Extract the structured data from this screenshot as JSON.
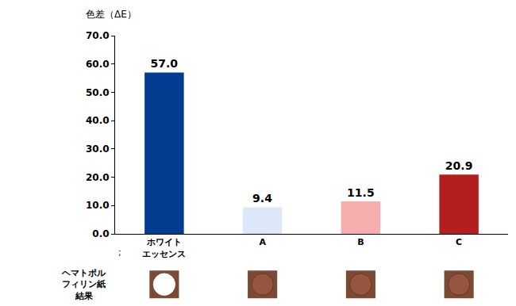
{
  "chart_data": {
    "type": "bar",
    "y_label": "色差（ΔE）",
    "categories": [
      "ホワイト\nエッセンス",
      "A",
      "B",
      "C"
    ],
    "values": [
      57.0,
      9.4,
      11.5,
      20.9
    ],
    "value_labels": [
      "57.0",
      "9.4",
      "11.5",
      "20.9"
    ],
    "colors": [
      "#033d91",
      "#dce8fa",
      "#f7aeae",
      "#b31d1d"
    ],
    "ylim": [
      0,
      70
    ],
    "yticks": [
      {
        "value": 0,
        "label": "0.0"
      },
      {
        "value": 10,
        "label": "10.0"
      },
      {
        "value": 20,
        "label": "20.0"
      },
      {
        "value": 30,
        "label": "30.0"
      },
      {
        "value": 40,
        "label": "40.0"
      },
      {
        "value": 50,
        "label": "50.0"
      },
      {
        "value": 60,
        "label": "60.0"
      },
      {
        "value": 70,
        "label": "70.0"
      }
    ],
    "grid": false,
    "data_labels": true,
    "annotations": [
      ";",
      "ヘマトポル\nフィリン紙\n結果"
    ]
  }
}
